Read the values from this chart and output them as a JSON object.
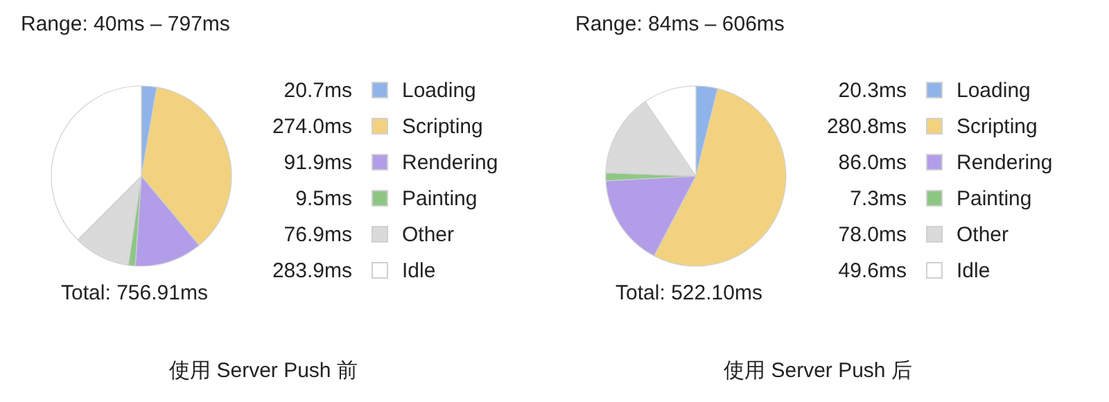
{
  "chart_data": [
    {
      "type": "pie",
      "title": "Range: 40ms – 797ms",
      "categories": [
        "Loading",
        "Scripting",
        "Rendering",
        "Painting",
        "Other",
        "Idle"
      ],
      "values": [
        20.7,
        274.0,
        91.9,
        9.5,
        76.9,
        283.9
      ],
      "value_labels": [
        "20.7ms",
        "274.0ms",
        "91.9ms",
        "9.5ms",
        "76.9ms",
        "283.9ms"
      ],
      "colors": [
        "#8fb4e9",
        "#f2d27f",
        "#b29de9",
        "#8ec784",
        "#dadada",
        "#ffffff"
      ],
      "legend": "right",
      "annotations": [
        "Total: 756.91ms",
        "使用 Server Push 前"
      ]
    },
    {
      "type": "pie",
      "title": "Range: 84ms – 606ms",
      "categories": [
        "Loading",
        "Scripting",
        "Rendering",
        "Painting",
        "Other",
        "Idle"
      ],
      "values": [
        20.3,
        280.8,
        86.0,
        7.3,
        78.0,
        49.6
      ],
      "value_labels": [
        "20.3ms",
        "280.8ms",
        "86.0ms",
        "7.3ms",
        "78.0ms",
        "49.6ms"
      ],
      "colors": [
        "#8fb4e9",
        "#f2d27f",
        "#b29de9",
        "#8ec784",
        "#dadada",
        "#ffffff"
      ],
      "legend": "right",
      "annotations": [
        "Total: 522.10ms",
        "使用 Server Push 后"
      ]
    }
  ]
}
